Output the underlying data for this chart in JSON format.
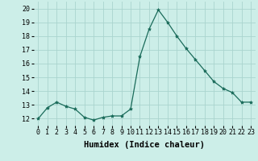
{
  "x": [
    0,
    1,
    2,
    3,
    4,
    5,
    6,
    7,
    8,
    9,
    10,
    11,
    12,
    13,
    14,
    15,
    16,
    17,
    18,
    19,
    20,
    21,
    22,
    23
  ],
  "y": [
    12.0,
    12.8,
    13.2,
    12.9,
    12.7,
    12.1,
    11.9,
    12.1,
    12.2,
    12.2,
    12.7,
    16.5,
    18.5,
    19.9,
    19.0,
    18.0,
    17.1,
    16.3,
    15.5,
    14.7,
    14.2,
    13.9,
    13.2,
    13.2
  ],
  "line_color": "#1a6b5a",
  "marker": "*",
  "marker_size": 3,
  "xlabel": "Humidex (Indice chaleur)",
  "xlim": [
    -0.5,
    23.5
  ],
  "ylim": [
    11.5,
    20.5
  ],
  "yticks": [
    12,
    13,
    14,
    15,
    16,
    17,
    18,
    19,
    20
  ],
  "xticks": [
    0,
    1,
    2,
    3,
    4,
    5,
    6,
    7,
    8,
    9,
    10,
    11,
    12,
    13,
    14,
    15,
    16,
    17,
    18,
    19,
    20,
    21,
    22,
    23
  ],
  "background_color": "#cceee8",
  "grid_color": "#aad4ce",
  "tick_label_fontsize": 6.0,
  "xlabel_fontsize": 7.5
}
